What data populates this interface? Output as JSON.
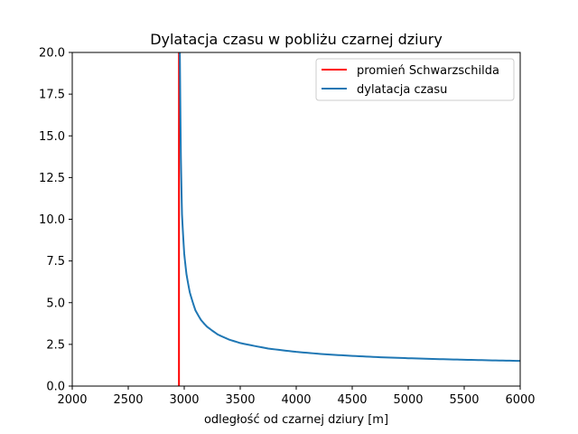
{
  "chart_data": {
    "type": "line",
    "title": "Dylatacja czasu w pobliżu czarnej dziury",
    "xlabel": "odległość od czarnej dziury [m]",
    "ylabel": "",
    "xlim": [
      2000,
      6000
    ],
    "ylim": [
      0,
      20
    ],
    "xticks": [
      "2000",
      "2500",
      "3000",
      "3500",
      "4000",
      "4500",
      "5000",
      "5500",
      "6000"
    ],
    "yticks": [
      "0.0",
      "2.5",
      "5.0",
      "7.5",
      "10.0",
      "12.5",
      "15.0",
      "17.5",
      "20.0"
    ],
    "grid": false,
    "legend_position": "top-right",
    "series": [
      {
        "name": "promień Schwarzschilda",
        "kind": "vertical-line",
        "x": 2953,
        "color": "#ff0000"
      },
      {
        "name": "dylatacja czasu",
        "kind": "curve",
        "color": "#1f77b4",
        "x": [
          2960,
          2970,
          2980,
          3000,
          3020,
          3050,
          3100,
          3150,
          3200,
          3300,
          3400,
          3500,
          3750,
          4000,
          4250,
          4500,
          4750,
          5000,
          5250,
          5500,
          5750,
          6000
        ],
        "y": [
          20.6,
          13.7,
          10.3,
          7.93,
          6.71,
          5.61,
          4.54,
          3.96,
          3.58,
          3.09,
          2.79,
          2.58,
          2.25,
          2.05,
          1.91,
          1.81,
          1.73,
          1.67,
          1.62,
          1.58,
          1.54,
          1.51
        ]
      }
    ]
  }
}
